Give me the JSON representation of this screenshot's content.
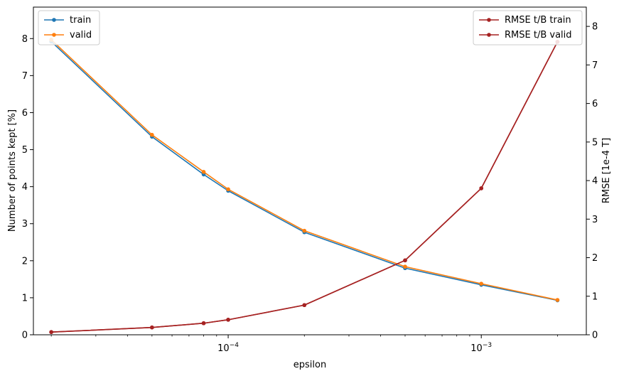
{
  "chart_data": {
    "type": "line",
    "xlabel": "epsilon",
    "ylabel_left": "Number of points kept [%]",
    "ylabel_right": "RMSE [1e-4 T]",
    "x_scale": "log",
    "x_range": [
      1.7e-05,
      0.0026
    ],
    "x": [
      2e-05,
      5e-05,
      8e-05,
      0.0001,
      0.0002,
      0.0005,
      0.001,
      0.002
    ],
    "x_tick_labels": [
      {
        "base": "10",
        "exp": "−4",
        "value": 0.0001
      },
      {
        "base": "10",
        "exp": "−3",
        "value": 0.001
      }
    ],
    "left_axis": {
      "range": [
        0,
        8.85
      ],
      "ticks": [
        "0",
        "1",
        "2",
        "3",
        "4",
        "5",
        "6",
        "7",
        "8"
      ]
    },
    "right_axis": {
      "range": [
        0,
        8.5
      ],
      "ticks": [
        "0",
        "1",
        "2",
        "3",
        "4",
        "5",
        "6",
        "7",
        "8"
      ]
    },
    "series_left": [
      {
        "name": "train",
        "color": "#1f77b4",
        "values": [
          7.92,
          5.35,
          4.33,
          3.89,
          2.77,
          1.8,
          1.35,
          0.93
        ]
      },
      {
        "name": "valid",
        "color": "#ff7f0e",
        "values": [
          7.97,
          5.4,
          4.4,
          3.93,
          2.81,
          1.84,
          1.38,
          0.94
        ]
      }
    ],
    "series_right": [
      {
        "name": "RMSE t/B train",
        "color": "#a62222",
        "values": [
          0.07,
          0.19,
          0.3,
          0.39,
          0.77,
          1.93,
          3.8,
          7.6
        ]
      },
      {
        "name": "RMSE t/B valid",
        "color": "#a62222",
        "values": [
          0.07,
          0.19,
          0.3,
          0.39,
          0.77,
          1.93,
          3.8,
          7.6
        ]
      }
    ],
    "legend_left_placement": "upper-left",
    "legend_right_placement": "upper-right",
    "grid": false
  }
}
